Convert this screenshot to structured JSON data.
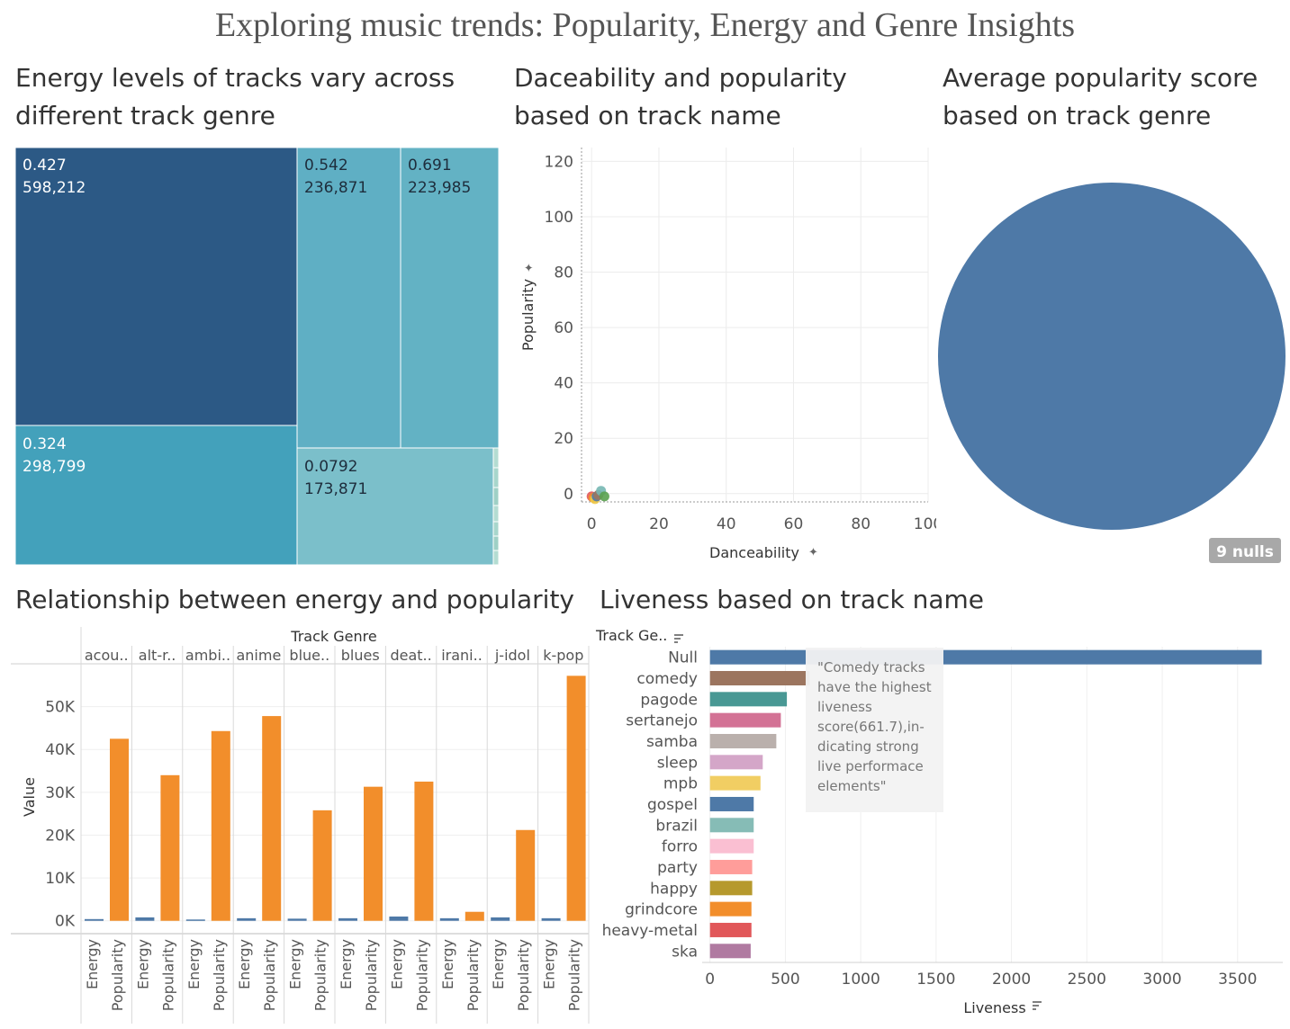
{
  "main_title": "Exploring music trends: Popularity, Energy and Genre Insights",
  "chart_data": [
    {
      "type": "treemap",
      "title": "Energy levels of tracks vary across different track genre",
      "tiles": [
        {
          "value1": "0.427",
          "value2": "598,212",
          "color": "#2c5985"
        },
        {
          "value1": "0.542",
          "value2": "236,871",
          "color": "#5fafc4"
        },
        {
          "value1": "0.691",
          "value2": "223,985",
          "color": "#63b2c4"
        },
        {
          "value1": "0.324",
          "value2": "298,799",
          "color": "#43a1bb"
        },
        {
          "value1": "0.0792",
          "value2": "173,871",
          "color": "#7bbfca"
        }
      ]
    },
    {
      "type": "scatter",
      "title": "Daceability and popularity based on track name",
      "xlabel": "Danceability",
      "ylabel": "Popularity",
      "xlim": [
        -3,
        100
      ],
      "ylim": [
        -3,
        125
      ],
      "xticks": [
        0,
        20,
        40,
        60,
        80,
        100
      ],
      "yticks": [
        0,
        20,
        40,
        60,
        80,
        100,
        120
      ],
      "points": [
        {
          "x": 0,
          "y": -1,
          "color": "#e15759"
        },
        {
          "x": 0.5,
          "y": -1.5,
          "color": "#f28e2b"
        },
        {
          "x": 1,
          "y": -2,
          "color": "#edc948"
        },
        {
          "x": 1.5,
          "y": -1,
          "color": "#4e79a7"
        },
        {
          "x": 2,
          "y": -0.5,
          "color": "#9c755f"
        },
        {
          "x": 2.8,
          "y": 1,
          "color": "#76b7b2"
        },
        {
          "x": 3.8,
          "y": -1,
          "color": "#59a14f"
        }
      ]
    },
    {
      "type": "pie",
      "title": "Average popularity score based on track genre",
      "slices": [
        {
          "value": 100,
          "color": "#4e79a7"
        }
      ],
      "nulls_label": "9 nulls"
    },
    {
      "type": "bar",
      "title": "Relationship between energy and popularity",
      "header": "Track Genre",
      "ylabel": "Value",
      "ylim": [
        -3000,
        60000
      ],
      "yticks": [
        0,
        10000,
        20000,
        30000,
        40000,
        50000
      ],
      "ytick_labels": [
        "0K",
        "10K",
        "20K",
        "30K",
        "40K",
        "50K"
      ],
      "categories": [
        "acou..",
        "alt-r..",
        "ambi..",
        "anime",
        "blue..",
        "blues",
        "deat..",
        "irani..",
        "j-idol",
        "k-pop"
      ],
      "measures": [
        "Energy",
        "Popularity"
      ],
      "series": [
        {
          "name": "Energy",
          "color": "#4e79a7",
          "values": [
            400,
            800,
            300,
            600,
            500,
            600,
            1000,
            600,
            800,
            600
          ]
        },
        {
          "name": "Popularity",
          "color": "#f28e2b",
          "values": [
            42500,
            34000,
            44300,
            47800,
            25800,
            31300,
            32500,
            2100,
            21200,
            57200
          ]
        }
      ]
    },
    {
      "type": "bar",
      "orientation": "horizontal",
      "title": "Liveness based on track name",
      "row_header": "Track Ge..",
      "xlabel": "Liveness",
      "xlim": [
        -40,
        3800
      ],
      "xticks": [
        0,
        500,
        1000,
        1500,
        2000,
        2500,
        3000,
        3500
      ],
      "categories": [
        "Null",
        "comedy",
        "pagode",
        "sertanejo",
        "samba",
        "sleep",
        "mpb",
        "gospel",
        "brazil",
        "forro",
        "party",
        "happy",
        "grindcore",
        "heavy-metal",
        "ska"
      ],
      "values": [
        3660,
        661.7,
        510,
        470,
        440,
        350,
        335,
        290,
        290,
        290,
        280,
        280,
        275,
        275,
        270
      ],
      "colors": [
        "#4e79a7",
        "#9c755f",
        "#499894",
        "#d37295",
        "#bab0ac",
        "#d4a6c8",
        "#f1ce63",
        "#4e79a7",
        "#86bcb6",
        "#fabfd2",
        "#ff9d9a",
        "#b6992d",
        "#f28e2b",
        "#e15759",
        "#b07aa1"
      ],
      "annotation": [
        "\"Comedy tracks",
        "have the highest",
        "liveness",
        "score(661.7),in-",
        "dicating strong",
        "live performace",
        "elements\""
      ]
    }
  ]
}
